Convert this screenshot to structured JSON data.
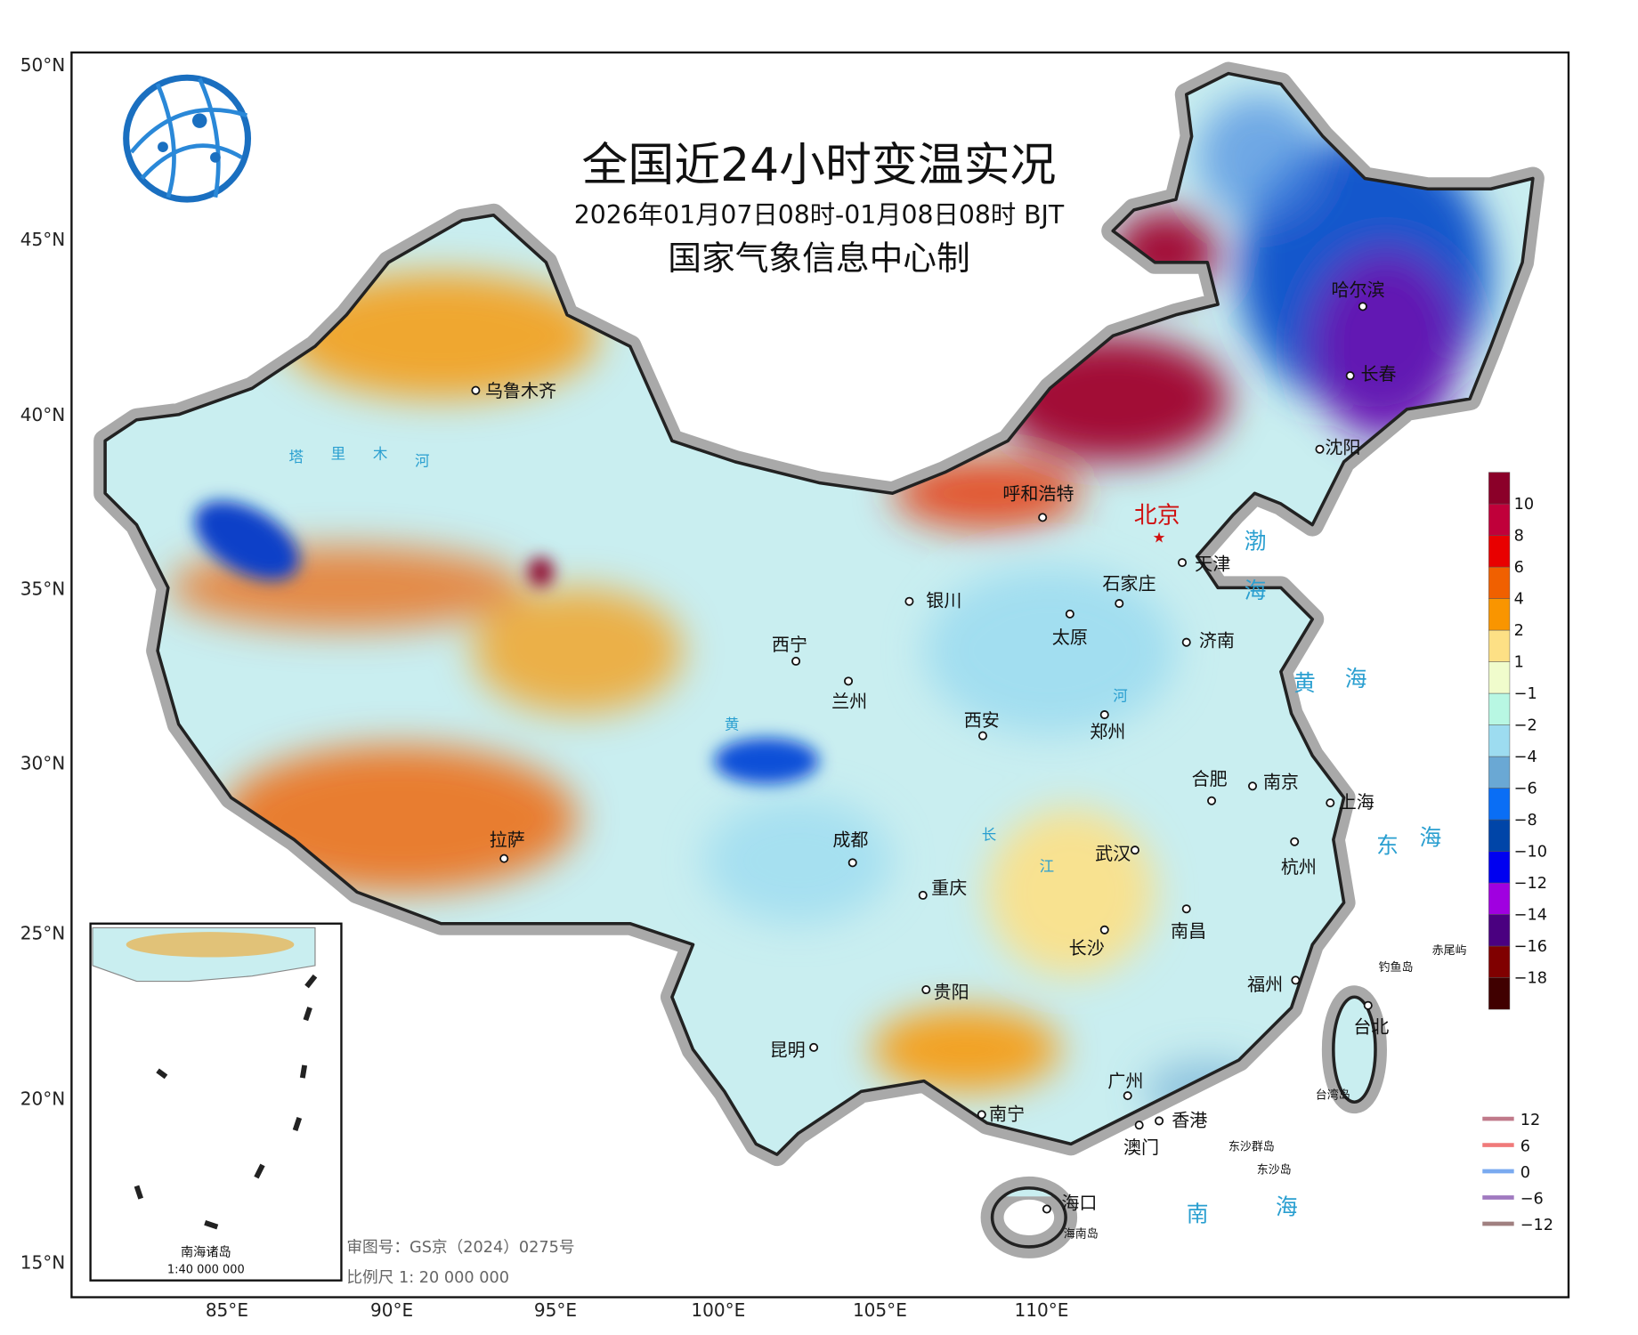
{
  "title": "全国近24小时变温实况",
  "subtitle": "2026年01月07日08时-01月08日08时 BJT",
  "producer": "国家气象信息中心制",
  "lat_labels": [
    "50°N",
    "45°N",
    "40°N",
    "35°N",
    "30°N",
    "25°N",
    "20°N",
    "15°N"
  ],
  "lon_labels": [
    "85°E",
    "90°E",
    "95°E",
    "100°E",
    "105°E",
    "110°E"
  ],
  "colorbar": {
    "labels": [
      "10",
      "8",
      "6",
      "4",
      "2",
      "1",
      "−1",
      "−2",
      "−4",
      "−6",
      "−8",
      "−10",
      "−12",
      "−14",
      "−16",
      "−18"
    ],
    "colors": [
      "#8b0029",
      "#c0003a",
      "#e80000",
      "#f06000",
      "#f99500",
      "#fde085",
      "#f0fccc",
      "#b8f7e3",
      "#9ddcf0",
      "#6aa8d4",
      "#0a6ef5",
      "#0045a8",
      "#0000f0",
      "#a000e0",
      "#4a0080",
      "#800000",
      "#400000"
    ]
  },
  "contour_legend": [
    {
      "label": "12",
      "color": "#c07a8a"
    },
    {
      "label": "6",
      "color": "#f07a7a"
    },
    {
      "label": "0",
      "color": "#7aaaf0"
    },
    {
      "label": "−6",
      "color": "#a07ac0"
    },
    {
      "label": "−12",
      "color": "#a08080"
    }
  ],
  "capital": "北京",
  "cities": [
    "乌鲁木齐",
    "呼和浩特",
    "天津",
    "哈尔滨",
    "长春",
    "沈阳",
    "银川",
    "石家庄",
    "太原",
    "济南",
    "西宁",
    "兰州",
    "西安",
    "郑州",
    "合肥",
    "南京",
    "上海",
    "拉萨",
    "成都",
    "武汉",
    "杭州",
    "重庆",
    "长沙",
    "南昌",
    "福州",
    "台北",
    "贵阳",
    "昆明",
    "广州",
    "南宁",
    "香港",
    "澳门",
    "海口"
  ],
  "islands": [
    "海南岛",
    "东沙群岛",
    "东沙岛",
    "钓鱼岛",
    "赤尾屿",
    "台湾岛"
  ],
  "seas": [
    "渤",
    "海",
    "黄",
    "海",
    "东",
    "海",
    "南",
    "海"
  ],
  "rivers": [
    "塔",
    "里",
    "木",
    "河",
    "黄",
    "河",
    "长",
    "江"
  ],
  "notes": {
    "review_number": "审图号：GS京（2024）0275号",
    "scale": "比例尺 1: 20 000 000"
  },
  "inset": {
    "title": "南海诸岛",
    "scale": "1:40 000 000"
  }
}
